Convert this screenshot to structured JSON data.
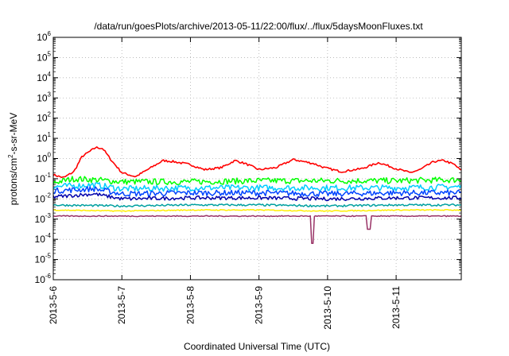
{
  "chart_data": {
    "type": "line",
    "title": "/data/run/goesPlots/archive/2013-05-11/22:00/flux/../flux/5daysMoonFluxes.txt",
    "xlabel": "Coordinated Universal Time (UTC)",
    "ylabel": {
      "prefix": "protons/cm",
      "sup": "2",
      "suffix": "-s-sr-MeV"
    },
    "x_range_days": [
      0,
      5.95
    ],
    "x_ticks": [
      {
        "label": "2013-5-6",
        "day": 0
      },
      {
        "label": "2013-5-7",
        "day": 1
      },
      {
        "label": "2013-5-8",
        "day": 2
      },
      {
        "label": "2013-5-9",
        "day": 3
      },
      {
        "label": "2013-5-10",
        "day": 4
      },
      {
        "label": "2013-5-11",
        "day": 5
      }
    ],
    "y_scale": "log",
    "y_ticks": [
      {
        "base": "10",
        "exp": "-6"
      },
      {
        "base": "10",
        "exp": "-5"
      },
      {
        "base": "10",
        "exp": "-4"
      },
      {
        "base": "10",
        "exp": "-3"
      },
      {
        "base": "10",
        "exp": "-2"
      },
      {
        "base": "10",
        "exp": "-1"
      },
      {
        "base": "10",
        "exp": "0"
      },
      {
        "base": "10",
        "exp": "1"
      },
      {
        "base": "10",
        "exp": "2"
      },
      {
        "base": "10",
        "exp": "3"
      },
      {
        "base": "10",
        "exp": "4"
      },
      {
        "base": "10",
        "exp": "5"
      },
      {
        "base": "10",
        "exp": "6"
      }
    ],
    "y_exp_range": [
      -6,
      6
    ],
    "grid": true,
    "series": [
      {
        "color": "#ff0000",
        "profile": [
          [
            0,
            -0.8
          ],
          [
            0.15,
            -0.95
          ],
          [
            0.3,
            -0.65
          ],
          [
            0.42,
            0.1
          ],
          [
            0.62,
            0.55
          ],
          [
            0.72,
            0.5
          ],
          [
            0.85,
            -0.1
          ],
          [
            1.0,
            -0.7
          ],
          [
            1.2,
            -0.9
          ],
          [
            1.4,
            -0.5
          ],
          [
            1.6,
            -0.1
          ],
          [
            1.75,
            -0.15
          ],
          [
            2.0,
            -0.3
          ],
          [
            2.2,
            -0.55
          ],
          [
            2.45,
            -0.45
          ],
          [
            2.65,
            -0.1
          ],
          [
            2.8,
            -0.25
          ],
          [
            3.0,
            -0.55
          ],
          [
            3.25,
            -0.45
          ],
          [
            3.5,
            -0.05
          ],
          [
            3.65,
            -0.15
          ],
          [
            3.8,
            -0.25
          ],
          [
            3.95,
            -0.45
          ],
          [
            4.2,
            -0.65
          ],
          [
            4.5,
            -0.5
          ],
          [
            4.75,
            -0.2
          ],
          [
            5.0,
            -0.5
          ],
          [
            5.2,
            -0.7
          ],
          [
            5.35,
            -0.55
          ],
          [
            5.55,
            -0.15
          ],
          [
            5.7,
            -0.1
          ],
          [
            5.85,
            -0.3
          ],
          [
            5.95,
            -0.6
          ]
        ],
        "noise": 0.1
      },
      {
        "color": "#00ff00",
        "profile": [
          [
            0,
            -1.2
          ],
          [
            0.3,
            -1.0
          ],
          [
            0.6,
            -1.05
          ],
          [
            1,
            -1.15
          ],
          [
            2,
            -1.15
          ],
          [
            3,
            -1.1
          ],
          [
            4,
            -1.1
          ],
          [
            5,
            -1.1
          ],
          [
            5.95,
            -1.05
          ]
        ],
        "noise": 0.3
      },
      {
        "color": "#00ccff",
        "profile": [
          [
            0,
            -1.4
          ],
          [
            0.6,
            -1.3
          ],
          [
            1,
            -1.5
          ],
          [
            2,
            -1.45
          ],
          [
            3,
            -1.45
          ],
          [
            4,
            -1.45
          ],
          [
            5,
            -1.45
          ],
          [
            5.95,
            -1.4
          ]
        ],
        "noise": 0.3
      },
      {
        "color": "#0044ff",
        "profile": [
          [
            0,
            -1.6
          ],
          [
            0.6,
            -1.5
          ],
          [
            1,
            -1.75
          ],
          [
            2,
            -1.7
          ],
          [
            3,
            -1.7
          ],
          [
            4,
            -1.75
          ],
          [
            5,
            -1.7
          ],
          [
            5.95,
            -1.7
          ]
        ],
        "noise": 0.28
      },
      {
        "color": "#0000aa",
        "profile": [
          [
            0,
            -1.9
          ],
          [
            0.6,
            -1.75
          ],
          [
            1,
            -2.0
          ],
          [
            2,
            -1.95
          ],
          [
            3,
            -1.95
          ],
          [
            4,
            -2.0
          ],
          [
            5,
            -1.95
          ],
          [
            5.95,
            -1.95
          ]
        ],
        "noise": 0.18
      },
      {
        "color": "#00a0a0",
        "profile": [
          [
            0,
            -2.3
          ],
          [
            1,
            -2.35
          ],
          [
            2,
            -2.3
          ],
          [
            3,
            -2.3
          ],
          [
            4,
            -2.35
          ],
          [
            5,
            -2.3
          ],
          [
            5.95,
            -2.3
          ]
        ],
        "noise": 0.1
      },
      {
        "color": "#ffee00",
        "profile": [
          [
            0,
            -2.55
          ],
          [
            1,
            -2.6
          ],
          [
            2,
            -2.55
          ],
          [
            3,
            -2.55
          ],
          [
            4,
            -2.6
          ],
          [
            5,
            -2.55
          ],
          [
            5.95,
            -2.55
          ]
        ],
        "noise": 0.05
      },
      {
        "color": "#993366",
        "profile": [
          [
            0,
            -2.85
          ],
          [
            1,
            -2.85
          ],
          [
            2,
            -2.85
          ],
          [
            3,
            -2.85
          ],
          [
            4,
            -2.85
          ],
          [
            5,
            -2.85
          ],
          [
            5.95,
            -2.85
          ]
        ],
        "noise": 0.05,
        "dips": [
          [
            3.78,
            -4.2
          ],
          [
            4.6,
            -3.5
          ]
        ]
      }
    ]
  }
}
